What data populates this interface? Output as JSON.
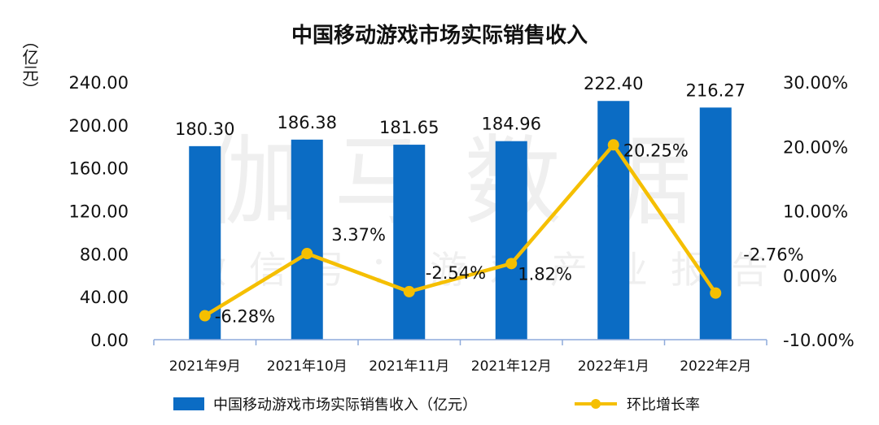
{
  "chart_data": {
    "type": "bar+line",
    "title": "中国移动游戏市场实际销售收入",
    "ylabel_left": "（亿元）",
    "categories": [
      "2021年9月",
      "2021年10月",
      "2021年11月",
      "2021年12月",
      "2022年1月",
      "2022年2月"
    ],
    "series": [
      {
        "name": "中国移动游戏市场实际销售收入（亿元）",
        "type": "bar",
        "axis": "left",
        "color": "#0b6cc4",
        "values": [
          180.3,
          186.38,
          181.65,
          184.96,
          222.4,
          216.27
        ],
        "labels": [
          "180.30",
          "186.38",
          "181.65",
          "184.96",
          "222.40",
          "216.27"
        ]
      },
      {
        "name": "环比增长率",
        "type": "line",
        "axis": "right",
        "color": "#f5bf00",
        "values": [
          -6.28,
          3.37,
          -2.54,
          1.82,
          20.25,
          -2.76
        ],
        "labels": [
          "-6.28%",
          "3.37%",
          "-2.54%",
          "1.82%",
          "20.25%",
          "-2.76%"
        ]
      }
    ],
    "left_axis": {
      "ylim": [
        0,
        240
      ],
      "ticks": [
        "0.00",
        "40.00",
        "80.00",
        "120.00",
        "160.00",
        "200.00",
        "240.00"
      ]
    },
    "right_axis": {
      "ylim": [
        -10,
        30
      ],
      "ticks": [
        "-10.00%",
        "0.00%",
        "10.00%",
        "20.00%",
        "30.00%"
      ]
    },
    "grid": false,
    "legend_position": "bottom",
    "watermark": {
      "main": "伽马数据",
      "sub": "微信号：游戏产业报告"
    }
  }
}
